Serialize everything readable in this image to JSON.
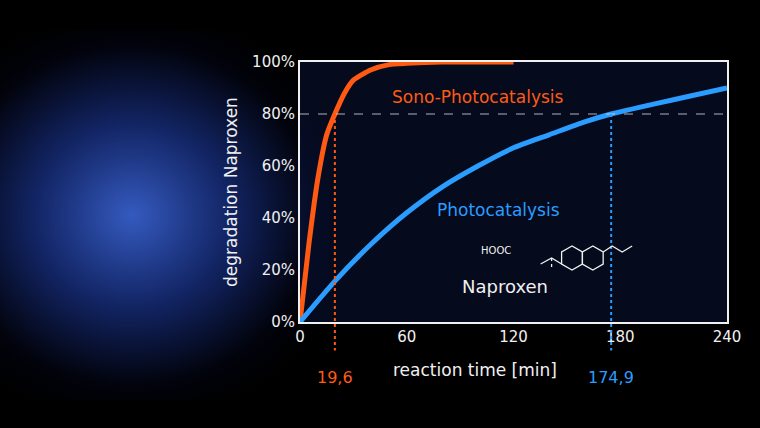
{
  "chart_data": {
    "type": "line",
    "x_label": "reaction time [min]",
    "y_label": "degradation Naproxen",
    "series": [
      {
        "name": "Sono-Photocatalysis",
        "color": "#ff5a14",
        "x": [
          0,
          5,
          10,
          15,
          19.6,
          25,
          30,
          40,
          50,
          60,
          80,
          100,
          120
        ],
        "values": [
          0,
          30,
          55,
          72,
          80,
          88,
          93,
          97,
          99,
          99.5,
          100,
          100,
          100
        ]
      },
      {
        "name": "Photocatalysis",
        "color": "#2a9dff",
        "x": [
          0,
          20,
          40,
          60,
          80,
          100,
          120,
          140,
          160,
          174.9,
          200,
          220,
          240
        ],
        "values": [
          0,
          16,
          30,
          42,
          52,
          60,
          67,
          72,
          77,
          80,
          84,
          87,
          90
        ]
      }
    ],
    "threshold": 80,
    "crossings": [
      {
        "series": "Sono-Photocatalysis",
        "x": 19.6,
        "label": "19,6"
      },
      {
        "series": "Photocatalysis",
        "x": 174.9,
        "label": "174,9"
      }
    ],
    "annotations": [
      {
        "text": "Naproxen"
      },
      {
        "text": "HOOC"
      }
    ],
    "xlim": [
      0,
      240
    ],
    "xticks": [
      0,
      60,
      120,
      180,
      240
    ],
    "ylim": [
      0,
      100
    ],
    "yticks": [
      {
        "value": 0,
        "label": "0%"
      },
      {
        "value": 20,
        "label": "20%"
      },
      {
        "value": 40,
        "label": "40%"
      },
      {
        "value": 60,
        "label": "60%"
      },
      {
        "value": 80,
        "label": "80%"
      },
      {
        "value": 100,
        "label": "100%"
      }
    ],
    "grid": false
  }
}
